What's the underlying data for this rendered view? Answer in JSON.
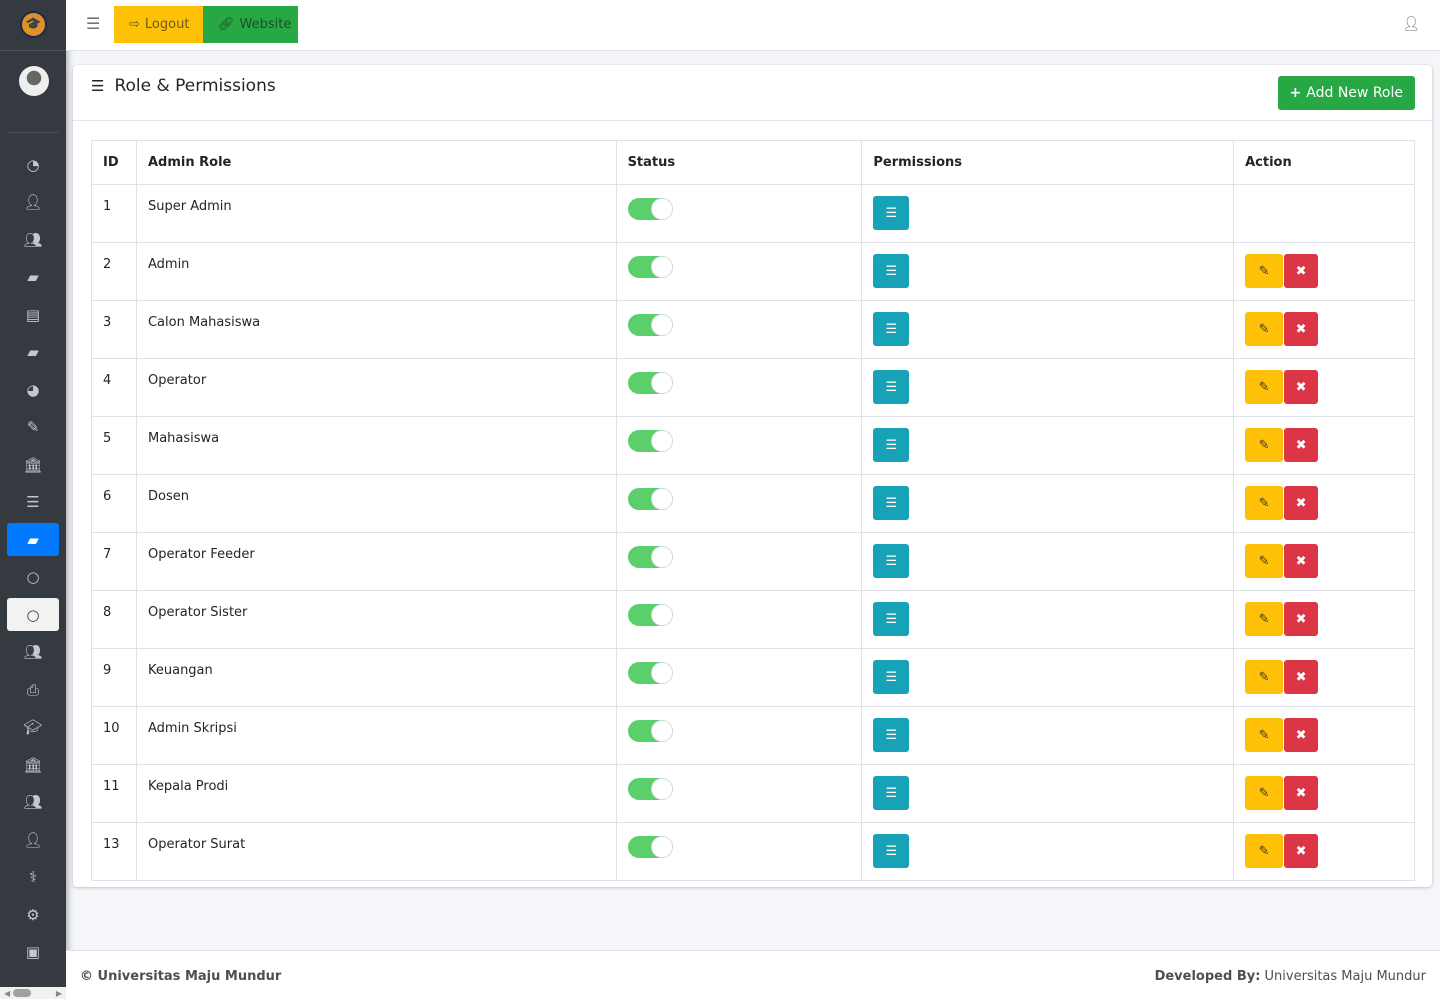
{
  "topbar": {
    "logout_label": "Logout",
    "website_label": "Website"
  },
  "card": {
    "title": "Role & Permissions",
    "add_button": "Add New Role"
  },
  "table": {
    "headers": [
      "ID",
      "Admin Role",
      "Status",
      "Permissions",
      "Action"
    ],
    "rows": [
      {
        "id": "1",
        "role": "Super Admin",
        "status": true,
        "actions": false
      },
      {
        "id": "2",
        "role": "Admin",
        "status": true,
        "actions": true
      },
      {
        "id": "3",
        "role": "Calon Mahasiswa",
        "status": true,
        "actions": true
      },
      {
        "id": "4",
        "role": "Operator",
        "status": true,
        "actions": true
      },
      {
        "id": "5",
        "role": "Mahasiswa",
        "status": true,
        "actions": true
      },
      {
        "id": "6",
        "role": "Dosen",
        "status": true,
        "actions": true
      },
      {
        "id": "7",
        "role": "Operator Feeder",
        "status": true,
        "actions": true
      },
      {
        "id": "8",
        "role": "Operator Sister",
        "status": true,
        "actions": true
      },
      {
        "id": "9",
        "role": "Keuangan",
        "status": true,
        "actions": true
      },
      {
        "id": "10",
        "role": "Admin Skripsi",
        "status": true,
        "actions": true
      },
      {
        "id": "11",
        "role": "Kepala Prodi",
        "status": true,
        "actions": true
      },
      {
        "id": "13",
        "role": "Operator Surat",
        "status": true,
        "actions": true
      }
    ]
  },
  "sidebar": {
    "icons": [
      "dashboard-icon",
      "user-icon",
      "users-icon",
      "book-icon",
      "newspaper-icon",
      "book-icon",
      "pie-chart-icon",
      "edit-icon",
      "bank-icon",
      "server-icon",
      "book-icon",
      "circle-icon",
      "circle-icon",
      "users-icon",
      "print-icon",
      "graduation-cap-icon",
      "bank-icon",
      "users-icon",
      "user-icon",
      "user-md-icon",
      "gear-icon",
      "money-icon"
    ],
    "active_index": 10,
    "highlight_index": 12
  },
  "footer": {
    "copyright": "© Universitas Maju Mundur",
    "developed_label": "Developed By:",
    "developer": "Universitas Maju Mundur"
  },
  "colors": {
    "sidebar": "#343a40",
    "primary": "#007bff",
    "success": "#28a745",
    "warning": "#ffc107",
    "danger": "#dc3545",
    "info": "#17a2b8"
  }
}
